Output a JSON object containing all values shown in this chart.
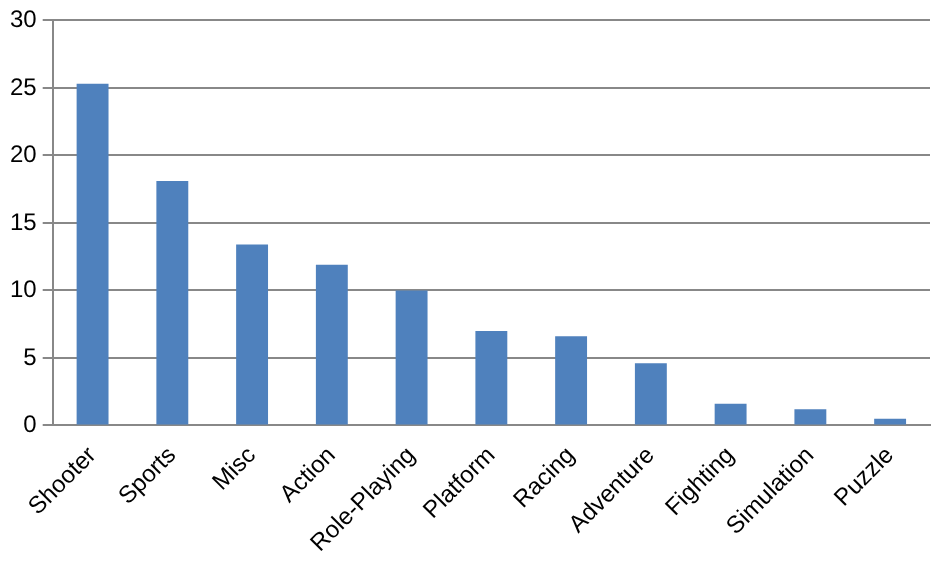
{
  "chart_data": {
    "type": "bar",
    "categories": [
      "Shooter",
      "Sports",
      "Misc",
      "Action",
      "Role-Playing",
      "Platform",
      "Racing",
      "Adventure",
      "Fighting",
      "Simulation",
      "Puzzle"
    ],
    "values": [
      25.3,
      18.1,
      13.4,
      11.9,
      10.0,
      7.0,
      6.6,
      4.6,
      1.6,
      1.2,
      0.5
    ],
    "color": "#4f81bd",
    "ylim": [
      0,
      30
    ],
    "yticks": [
      0,
      5,
      10,
      15,
      20,
      25,
      30
    ],
    "grid": "y"
  }
}
